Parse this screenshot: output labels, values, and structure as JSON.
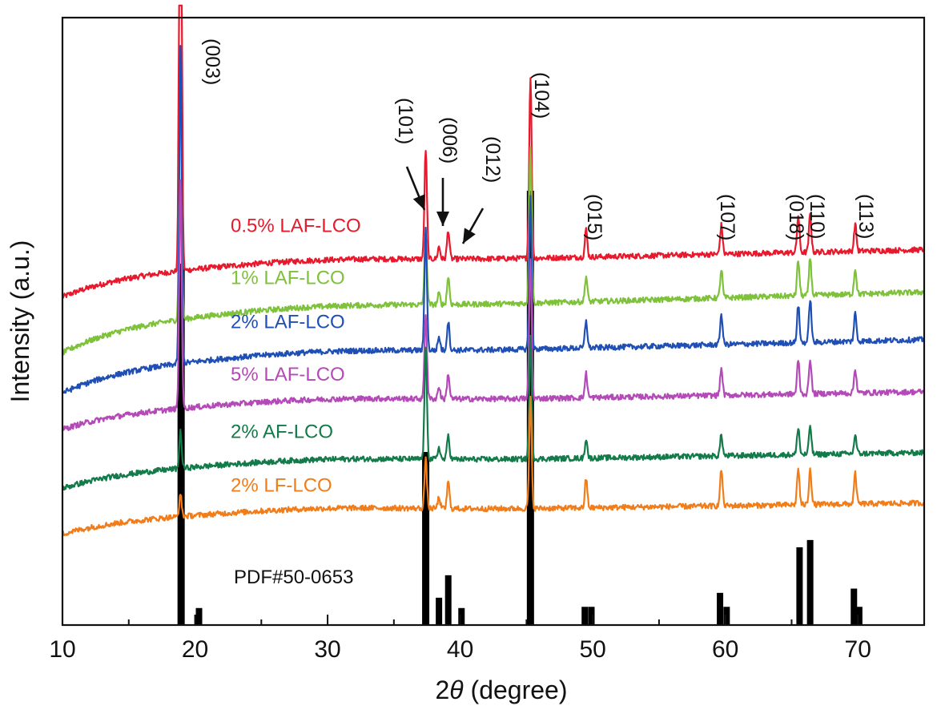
{
  "chart_data": {
    "type": "line",
    "xlabel_prefix": "2",
    "xlabel_theta": "θ",
    "xlabel_suffix": " (degree)",
    "ylabel": "Intensity (a.u.)",
    "xlim": [
      10,
      75
    ],
    "xticks": [
      10,
      20,
      30,
      40,
      50,
      60,
      70
    ],
    "xtick_labels": [
      "10",
      "20",
      "30",
      "40",
      "50",
      "60",
      "70"
    ],
    "minor_xticks": [
      15,
      25,
      35,
      45,
      55,
      65,
      75
    ],
    "y_tick_labels_shown": false,
    "peaks": [
      {
        "two_theta": 18.9,
        "index": "(003)"
      },
      {
        "two_theta": 37.4,
        "index": "(101)"
      },
      {
        "two_theta": 38.4,
        "index": "(006)"
      },
      {
        "two_theta": 39.1,
        "index": "(012)"
      },
      {
        "two_theta": 45.3,
        "index": "(104)"
      },
      {
        "two_theta": 49.5,
        "index": "(015)"
      },
      {
        "two_theta": 59.7,
        "index": "(107)"
      },
      {
        "two_theta": 65.5,
        "index": "(018)"
      },
      {
        "two_theta": 66.4,
        "index": "(110)"
      },
      {
        "two_theta": 69.8,
        "index": "(113)"
      }
    ],
    "series": [
      {
        "name": "0.5% LAF-LCO",
        "color": "#e8192c",
        "baseline_start": 0.54,
        "baseline_end": 0.618,
        "peak_heights": [
          1.0,
          0.18,
          0.02,
          0.048,
          0.3,
          0.045,
          0.048,
          0.06,
          0.062,
          0.045
        ]
      },
      {
        "name": "1% LAF-LCO",
        "color": "#7ec13a",
        "baseline_start": 0.448,
        "baseline_end": 0.548,
        "peak_heights": [
          0.4,
          0.12,
          0.018,
          0.046,
          0.26,
          0.042,
          0.046,
          0.058,
          0.062,
          0.042
        ]
      },
      {
        "name": "2% LAF-LCO",
        "color": "#1f4fb4",
        "baseline_start": 0.382,
        "baseline_end": 0.47,
        "peak_heights": [
          0.52,
          0.2,
          0.022,
          0.048,
          0.25,
          0.045,
          0.05,
          0.062,
          0.072,
          0.046
        ]
      },
      {
        "name": "5% LAF-LCO",
        "color": "#b449b8",
        "baseline_start": 0.322,
        "baseline_end": 0.384,
        "peak_heights": [
          0.38,
          0.14,
          0.02,
          0.042,
          0.23,
          0.04,
          0.044,
          0.055,
          0.058,
          0.04
        ]
      },
      {
        "name": "2% AF-LCO",
        "color": "#137a4a",
        "baseline_start": 0.225,
        "baseline_end": 0.284,
        "peak_heights": [
          0.06,
          0.18,
          0.02,
          0.04,
          0.2,
          0.032,
          0.034,
          0.045,
          0.048,
          0.03
        ]
      },
      {
        "name": "2% LF-LCO",
        "color": "#f07d1a",
        "baseline_start": 0.15,
        "baseline_end": 0.201,
        "peak_heights": [
          0.035,
          0.08,
          0.018,
          0.045,
          0.18,
          0.048,
          0.06,
          0.06,
          0.06,
          0.05
        ]
      }
    ],
    "reference": {
      "name": "PDF#50-0653",
      "lines": [
        {
          "two_theta": 18.95,
          "height": 0.595
        },
        {
          "two_theta": 20.3,
          "height": 0.028
        },
        {
          "two_theta": 37.4,
          "height": 0.285
        },
        {
          "two_theta": 38.4,
          "height": 0.045
        },
        {
          "two_theta": 39.1,
          "height": 0.082
        },
        {
          "two_theta": 40.1,
          "height": 0.028
        },
        {
          "two_theta": 45.3,
          "height": 0.715
        },
        {
          "two_theta": 49.4,
          "height": 0.03
        },
        {
          "two_theta": 49.9,
          "height": 0.03
        },
        {
          "two_theta": 59.6,
          "height": 0.053
        },
        {
          "two_theta": 60.1,
          "height": 0.03
        },
        {
          "two_theta": 65.6,
          "height": 0.128
        },
        {
          "two_theta": 66.4,
          "height": 0.14
        },
        {
          "two_theta": 69.7,
          "height": 0.06
        },
        {
          "two_theta": 70.1,
          "height": 0.03
        }
      ]
    },
    "arrows": [
      {
        "label_index": 1,
        "label": "(101)"
      },
      {
        "label_index": 2,
        "label": "(006)"
      },
      {
        "label_index": 3,
        "label": "(012)"
      }
    ],
    "grid": false,
    "legend": "inline labels"
  }
}
